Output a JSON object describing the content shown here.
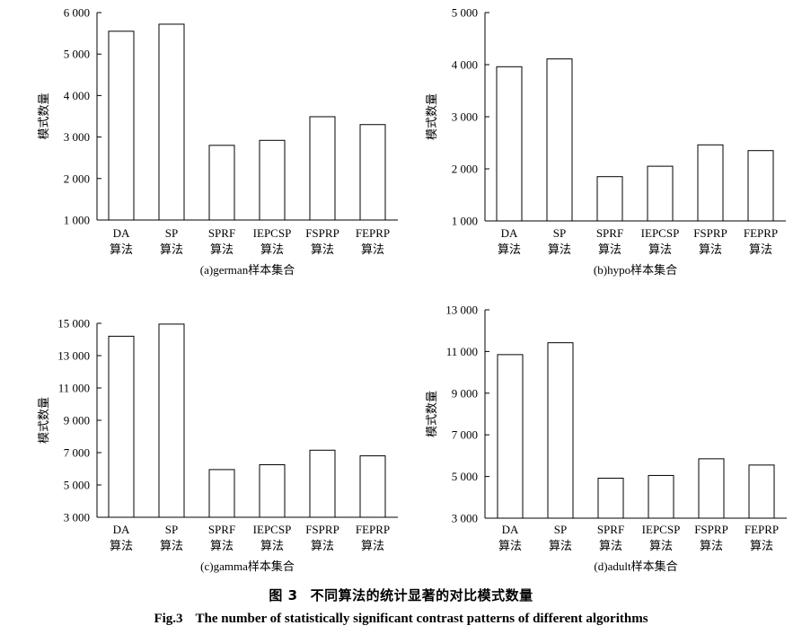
{
  "figure": {
    "caption_cn_label": "图 3",
    "caption_cn_text": "不同算法的统计显著的对比模式数量",
    "caption_en_label": "Fig.3",
    "caption_en_text": "The number of statistically significant contrast patterns of different algorithms"
  },
  "chart_data": [
    {
      "type": "bar",
      "title": "(a)german样本集合",
      "ylabel": "模式数量",
      "xlabel": "",
      "categories": [
        [
          "DA",
          "算法"
        ],
        [
          "SP",
          "算法"
        ],
        [
          "SPRF",
          "算法"
        ],
        [
          "IEPCSP",
          "算法"
        ],
        [
          "FSPRP",
          "算法"
        ],
        [
          "FEPRP",
          "算法"
        ]
      ],
      "values": [
        5550,
        5720,
        2800,
        2920,
        3490,
        3300
      ],
      "ylim": [
        1000,
        6000
      ],
      "yticks": [
        1000,
        2000,
        3000,
        4000,
        5000,
        6000
      ],
      "ytick_labels": [
        "1 000",
        "2 000",
        "3 000",
        "4 000",
        "5 000",
        "6 000"
      ],
      "grid": false
    },
    {
      "type": "bar",
      "title": "(b)hypo样本集合",
      "ylabel": "模式数量",
      "xlabel": "",
      "categories": [
        [
          "DA",
          "算法"
        ],
        [
          "SP",
          "算法"
        ],
        [
          "SPRF",
          "算法"
        ],
        [
          "IEPCSP",
          "算法"
        ],
        [
          "FSPRP",
          "算法"
        ],
        [
          "FEPRP",
          "算法"
        ]
      ],
      "values": [
        3960,
        4110,
        1850,
        2050,
        2460,
        2350
      ],
      "ylim": [
        1000,
        5000
      ],
      "yticks": [
        1000,
        2000,
        3000,
        4000,
        5000
      ],
      "ytick_labels": [
        "1 000",
        "2 000",
        "3 000",
        "4 000",
        "5 000"
      ],
      "grid": false
    },
    {
      "type": "bar",
      "title": "(c)gamma样本集合",
      "ylabel": "模式数量",
      "xlabel": "",
      "categories": [
        [
          "DA",
          "算法"
        ],
        [
          "SP",
          "算法"
        ],
        [
          "SPRF",
          "算法"
        ],
        [
          "IEPCSP",
          "算法"
        ],
        [
          "FSPRP",
          "算法"
        ],
        [
          "FEPRP",
          "算法"
        ]
      ],
      "values": [
        14200,
        14950,
        5950,
        6250,
        7150,
        6800
      ],
      "ylim": [
        3000,
        15000
      ],
      "yticks": [
        3000,
        5000,
        7000,
        9000,
        11000,
        13000,
        15000
      ],
      "ytick_labels": [
        "3 000",
        "5 000",
        "7 000",
        "9 000",
        "11 000",
        "13 000",
        "15 000"
      ],
      "grid": false
    },
    {
      "type": "bar",
      "title": "(d)adult样本集合",
      "ylabel": "模式数量",
      "xlabel": "",
      "categories": [
        [
          "DA",
          "算法"
        ],
        [
          "SP",
          "算法"
        ],
        [
          "SPRF",
          "算法"
        ],
        [
          "IEPCSP",
          "算法"
        ],
        [
          "FSPRP",
          "算法"
        ],
        [
          "FEPRP",
          "算法"
        ]
      ],
      "values": [
        10850,
        11420,
        4920,
        5050,
        5850,
        5550
      ],
      "ylim": [
        3000,
        13000
      ],
      "yticks": [
        3000,
        5000,
        7000,
        9000,
        11000,
        13000
      ],
      "ytick_labels": [
        "3 000",
        "5 000",
        "7 000",
        "9 000",
        "11 000",
        "13 000"
      ],
      "grid": false
    }
  ]
}
